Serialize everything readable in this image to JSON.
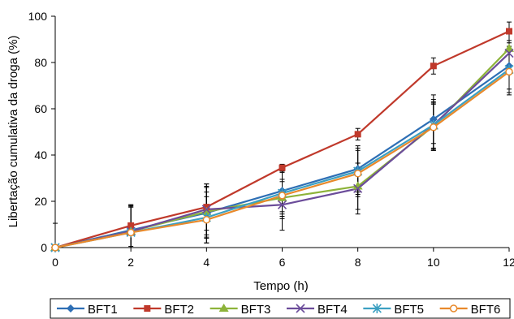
{
  "chart_data": {
    "type": "line",
    "title": "",
    "xlabel": "Tempo (h)",
    "ylabel": "Libertação cumulativa da droga (%)",
    "x": [
      0,
      2,
      4,
      6,
      8,
      10,
      12
    ],
    "xlim": [
      0,
      12
    ],
    "ylim": [
      0,
      100
    ],
    "xticks": [
      0,
      2,
      4,
      6,
      8,
      10,
      12
    ],
    "yticks": [
      0,
      20,
      40,
      60,
      80,
      100
    ],
    "grid": false,
    "legend_position": "bottom",
    "series": [
      {
        "name": "BFT1",
        "color": "#2E6FB5",
        "marker": "diamond",
        "values": [
          0,
          7.5,
          15,
          24.5,
          34,
          55.5,
          78.5
        ],
        "errors": [
          10.5,
          11,
          11,
          9,
          10,
          10.5,
          10
        ]
      },
      {
        "name": "BFT2",
        "color": "#C0392B",
        "marker": "square",
        "values": [
          0,
          9.5,
          17.5,
          34.5,
          49,
          78.5,
          93.5
        ],
        "errors": [
          0,
          9,
          10,
          1.5,
          2.5,
          3.5,
          4
        ]
      },
      {
        "name": "BFT3",
        "color": "#8DB33A",
        "marker": "triangle",
        "values": [
          0,
          7,
          15.5,
          21.5,
          26.5,
          52.5,
          86
        ],
        "errors": [
          0,
          11,
          11,
          7,
          10,
          10,
          8
        ]
      },
      {
        "name": "BFT4",
        "color": "#6B4C9A",
        "marker": "x",
        "values": [
          0,
          7,
          16.5,
          18.5,
          25.5,
          53,
          84
        ],
        "errors": [
          0,
          11,
          11,
          11,
          11,
          11,
          9
        ]
      },
      {
        "name": "BFT5",
        "color": "#3CA0C2",
        "marker": "star",
        "values": [
          0,
          6.5,
          13,
          23.5,
          33,
          53,
          77
        ],
        "errors": [
          0,
          11,
          11,
          10,
          10,
          10,
          10
        ]
      },
      {
        "name": "BFT6",
        "color": "#E8892B",
        "marker": "circle",
        "values": [
          0,
          6.5,
          12,
          22.5,
          32,
          52,
          76
        ],
        "errors": [
          0,
          11,
          10,
          10,
          10,
          10,
          10
        ]
      }
    ]
  }
}
